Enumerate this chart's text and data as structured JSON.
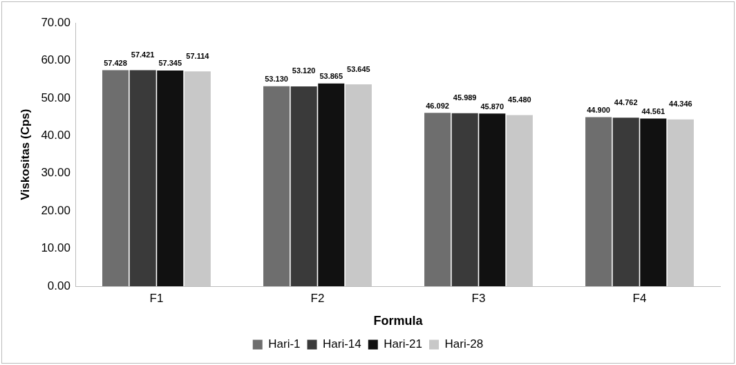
{
  "chart_data": {
    "type": "bar",
    "xlabel": "Formula",
    "ylabel": "Viskositas (Cps)",
    "categories": [
      "F1",
      "F2",
      "F3",
      "F4"
    ],
    "series": [
      {
        "name": "Hari-1",
        "color": "#6e6e6e",
        "values": [
          57.428,
          53.13,
          46.092,
          44.9
        ],
        "value_labels": [
          "57.428",
          "53.130",
          "46.092",
          "44.900"
        ]
      },
      {
        "name": "Hari-14",
        "color": "#3a3a3a",
        "values": [
          57.421,
          53.12,
          45.989,
          44.762
        ],
        "value_labels": [
          "57.421",
          "53.120",
          "45.989",
          "44.762"
        ]
      },
      {
        "name": "Hari-21",
        "color": "#111111",
        "values": [
          57.345,
          53.865,
          45.87,
          44.561
        ],
        "value_labels": [
          "57.345",
          "53.865",
          "45.870",
          "44.561"
        ]
      },
      {
        "name": "Hari-28",
        "color": "#c8c8c8",
        "values": [
          57.114,
          53.645,
          45.48,
          44.346
        ],
        "value_labels": [
          "57.114",
          "53.645",
          "45.480",
          "44.346"
        ]
      }
    ],
    "ylim": [
      0,
      70
    ],
    "yticks": [
      {
        "value": 0,
        "label": "0.00"
      },
      {
        "value": 10,
        "label": "10.00"
      },
      {
        "value": 20,
        "label": "20.00"
      },
      {
        "value": 30,
        "label": "30.00"
      },
      {
        "value": 40,
        "label": "40.00"
      },
      {
        "value": 50,
        "label": "50.00"
      },
      {
        "value": 60,
        "label": "60.00"
      },
      {
        "value": 70,
        "label": "70.00"
      }
    ],
    "grid": false,
    "legend": "bottom"
  }
}
